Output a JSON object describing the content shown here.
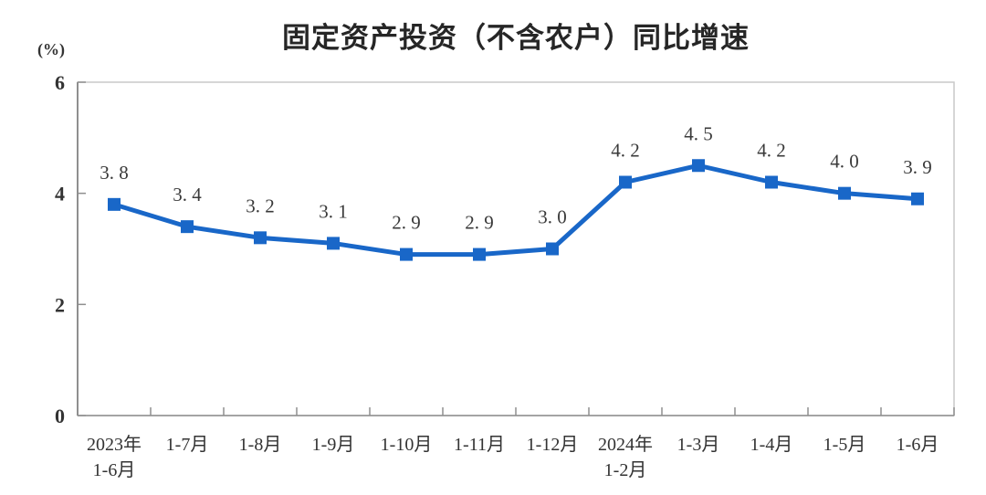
{
  "chart_data": {
    "type": "line",
    "title": "固定资产投资（不含农户）同比增速",
    "ylabel": "(%)",
    "categories": [
      [
        "2023年",
        "1-6月"
      ],
      [
        "1-7月"
      ],
      [
        "1-8月"
      ],
      [
        "1-9月"
      ],
      [
        "1-10月"
      ],
      [
        "1-11月"
      ],
      [
        "1-12月"
      ],
      [
        "2024年",
        "1-2月"
      ],
      [
        "1-3月"
      ],
      [
        "1-4月"
      ],
      [
        "1-5月"
      ],
      [
        "1-6月"
      ]
    ],
    "values": [
      3.8,
      3.4,
      3.2,
      3.1,
      2.9,
      2.9,
      3.0,
      4.2,
      4.5,
      4.2,
      4.0,
      3.9
    ],
    "point_labels": [
      "3. 8",
      "3. 4",
      "3. 2",
      "3. 1",
      "2. 9",
      "2. 9",
      "3. 0",
      "4. 2",
      "4. 5",
      "4. 2",
      "4. 0",
      "3. 9"
    ],
    "ylim": [
      0,
      6
    ],
    "yticks": [
      0,
      2,
      4,
      6
    ],
    "grid": false,
    "legend": "none",
    "marker": "square",
    "colors": {
      "line": "#1967C8",
      "marker": "#1967C8",
      "title": "#262626",
      "tick_text": "#333333",
      "point_label_text": "#3a3a3a",
      "axis": "#8f8f8f",
      "plot_border": "#c9c9c9",
      "background": "#ffffff"
    }
  }
}
